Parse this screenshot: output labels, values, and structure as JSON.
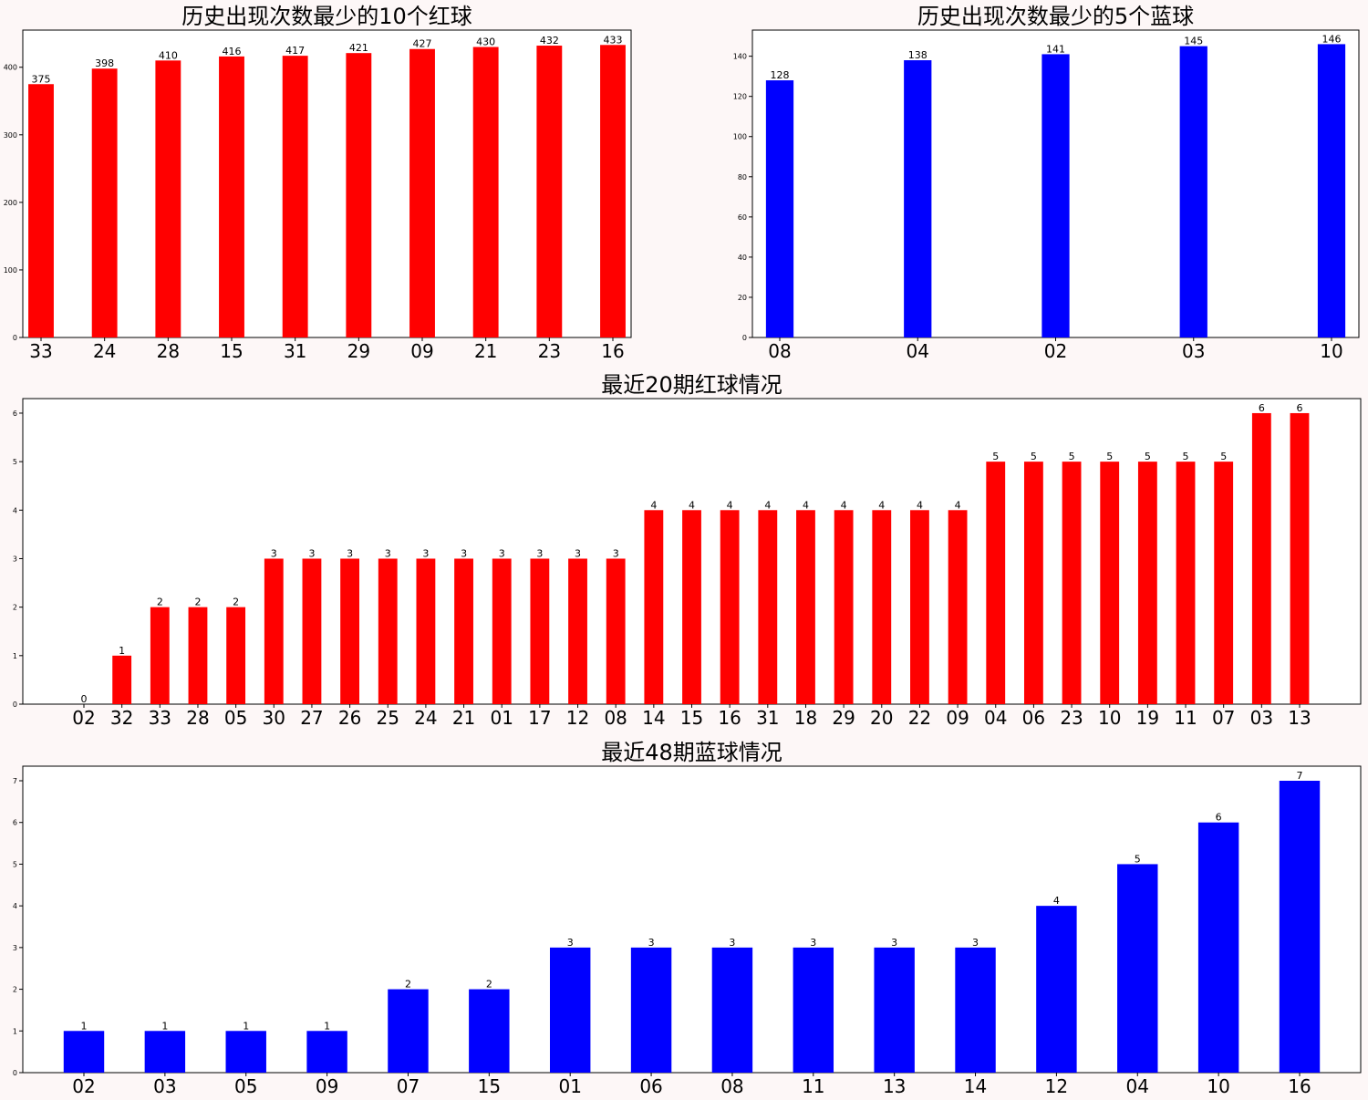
{
  "chart_data": [
    {
      "type": "bar",
      "title": "历史出现次数最少的10个红球",
      "color": "#ff0000",
      "categories": [
        "33",
        "24",
        "28",
        "15",
        "31",
        "29",
        "09",
        "21",
        "23",
        "16"
      ],
      "values": [
        375,
        398,
        410,
        416,
        417,
        421,
        427,
        430,
        432,
        433
      ],
      "ylim": [
        0,
        455
      ],
      "yticks": [
        0,
        100,
        200,
        300,
        400
      ]
    },
    {
      "type": "bar",
      "title": "历史出现次数最少的5个蓝球",
      "color": "#0000ff",
      "categories": [
        "08",
        "04",
        "02",
        "03",
        "10"
      ],
      "values": [
        128,
        138,
        141,
        145,
        146
      ],
      "ylim": [
        0,
        153
      ],
      "yticks": [
        0,
        20,
        40,
        60,
        80,
        100,
        120,
        140
      ]
    },
    {
      "type": "bar",
      "title": "最近20期红球情况",
      "color": "#ff0000",
      "categories": [
        "02",
        "32",
        "33",
        "28",
        "05",
        "30",
        "27",
        "26",
        "25",
        "24",
        "21",
        "01",
        "17",
        "12",
        "08",
        "14",
        "15",
        "16",
        "31",
        "18",
        "29",
        "20",
        "22",
        "09",
        "04",
        "06",
        "23",
        "10",
        "19",
        "11",
        "07",
        "03",
        "13"
      ],
      "values": [
        0,
        1,
        2,
        2,
        2,
        3,
        3,
        3,
        3,
        3,
        3,
        3,
        3,
        3,
        3,
        4,
        4,
        4,
        4,
        4,
        4,
        4,
        4,
        4,
        5,
        5,
        5,
        5,
        5,
        5,
        5,
        6,
        6
      ],
      "ylim": [
        0,
        6.3
      ],
      "yticks": [
        0,
        1,
        2,
        3,
        4,
        5,
        6
      ]
    },
    {
      "type": "bar",
      "title": "最近48期蓝球情况",
      "color": "#0000ff",
      "categories": [
        "02",
        "03",
        "05",
        "09",
        "07",
        "15",
        "01",
        "06",
        "08",
        "11",
        "13",
        "14",
        "12",
        "04",
        "10",
        "16"
      ],
      "values": [
        1,
        1,
        1,
        1,
        2,
        2,
        3,
        3,
        3,
        3,
        3,
        3,
        4,
        5,
        6,
        7
      ],
      "ylim": [
        0,
        7.35
      ],
      "yticks": [
        0,
        1,
        2,
        3,
        4,
        5,
        6,
        7
      ]
    }
  ]
}
